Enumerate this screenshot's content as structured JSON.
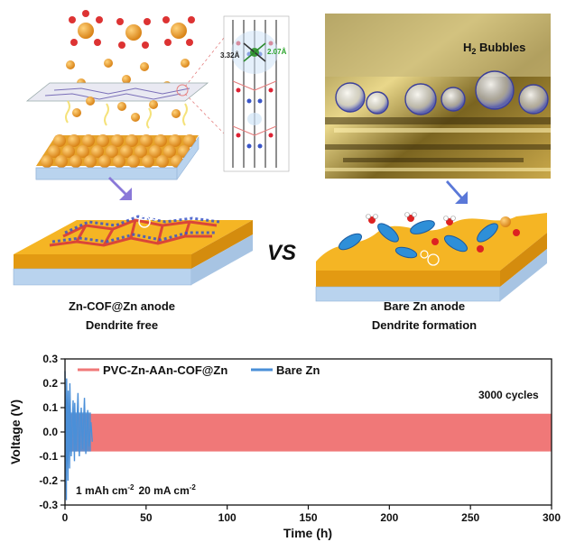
{
  "panels": {
    "left_label_line1": "Zn-COF@Zn anode",
    "left_label_line2": "Dendrite free",
    "right_label_line1": "Bare Zn anode",
    "right_label_line2": "Dendrite formation",
    "vs_text": "VS",
    "bubbles_label": "H",
    "bubbles_sub": "2",
    "bubbles_rest": " Bubbles",
    "distance_a": "3.32Å",
    "distance_b": "2.07Å",
    "colors": {
      "zn_sphere": "#f0a030",
      "substrate_blue": "#b9d3ee",
      "anode_gold": "#f5b524",
      "bare_zn_red": "#f07878",
      "cof_blue": "#4a8fd8"
    }
  },
  "chart_data": {
    "type": "line",
    "xlabel": "Time (h)",
    "ylabel": "Voltage (V)",
    "xlim": [
      0,
      300
    ],
    "ylim": [
      -0.3,
      0.3
    ],
    "xticks": [
      "0",
      "50",
      "100",
      "150",
      "200",
      "250",
      "300"
    ],
    "yticks": [
      "0.3",
      "0.2",
      "0.1",
      "0.0",
      "-0.1",
      "-0.2",
      "-0.3"
    ],
    "annotation_cycles": "3000 cycles",
    "annotation_cond_1": "1 mAh cm",
    "annotation_cond_1_sup": "-2",
    "annotation_cond_2": "20 mA cm",
    "annotation_cond_2_sup": "-2",
    "legend_position": "top",
    "series": [
      {
        "name": "PVC-Zn-AAn-COF@Zn",
        "color": "#f07878",
        "x": [
          0,
          300
        ],
        "y_upper": [
          0.075,
          0.075
        ],
        "y_lower": [
          -0.08,
          -0.08
        ]
      },
      {
        "name": "Bare Zn",
        "color": "#4a8fd8",
        "x": [
          0,
          1,
          2,
          3,
          5,
          6,
          8,
          10,
          12,
          14,
          16
        ],
        "y_upper": [
          0.25,
          0.22,
          0.17,
          0.2,
          0.13,
          0.12,
          0.16,
          0.1,
          0.14,
          0.09,
          0.04
        ],
        "y_lower": [
          -0.28,
          -0.2,
          -0.15,
          -0.1,
          -0.12,
          -0.08,
          -0.1,
          -0.07,
          -0.09,
          -0.06,
          -0.04
        ]
      }
    ]
  }
}
